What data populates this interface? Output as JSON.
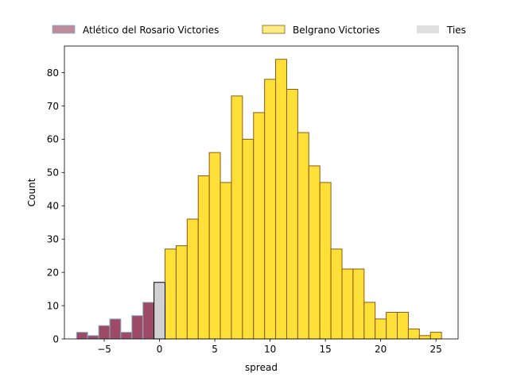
{
  "chart_data": {
    "type": "bar",
    "xlabel": "spread",
    "ylabel": "Count",
    "xlim": [
      -8.6,
      27.0
    ],
    "ylim": [
      0,
      88
    ],
    "xticks": [
      -5,
      0,
      5,
      10,
      15,
      20,
      25
    ],
    "yticks": [
      0,
      10,
      20,
      30,
      40,
      50,
      60,
      70,
      80
    ],
    "grid": false,
    "legend": "top-center, outside plot area, single row",
    "bin_width": 1.0,
    "series": [
      {
        "name": "Atlético del Rosario Victories",
        "fill": "#8b2a4b",
        "fill_opacity": 0.85,
        "edge": "#8ab0c8",
        "x": [
          -7,
          -6,
          -5,
          -4,
          -3,
          -2,
          -1
        ],
        "values": [
          2,
          1,
          4,
          6,
          2,
          7,
          11
        ]
      },
      {
        "name": "Belgrano Victories",
        "fill": "#ffdd22",
        "fill_opacity": 0.9,
        "edge": "#8b5a14",
        "x": [
          1,
          2,
          3,
          4,
          5,
          6,
          7,
          8,
          9,
          10,
          11,
          12,
          13,
          14,
          15,
          16,
          17,
          18,
          19,
          20,
          21,
          22,
          23,
          24,
          25
        ],
        "values": [
          27,
          28,
          36,
          49,
          56,
          47,
          73,
          60,
          68,
          78,
          84,
          75,
          62,
          52,
          47,
          27,
          21,
          21,
          11,
          6,
          8,
          8,
          3,
          1,
          2
        ]
      },
      {
        "name": "Ties",
        "fill": "#cccccc",
        "fill_opacity": 0.9,
        "edge": "#000000",
        "x": [
          0
        ],
        "values": [
          17
        ]
      }
    ]
  }
}
